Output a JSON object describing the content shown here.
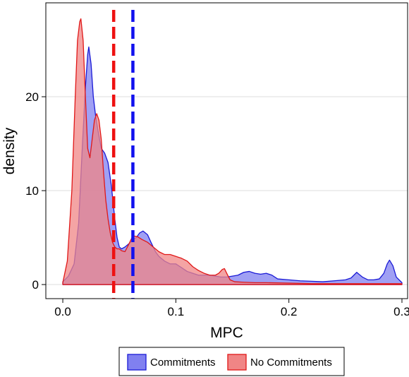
{
  "chart_data": {
    "type": "area",
    "xlabel": "MPC",
    "ylabel": "density",
    "xlim": [
      -0.015,
      0.305
    ],
    "ylim": [
      -1.5,
      30
    ],
    "xticks": [
      {
        "value": 0,
        "label": "0.0"
      },
      {
        "value": 0.1,
        "label": "0.1"
      },
      {
        "value": 0.2,
        "label": "0.2"
      },
      {
        "value": 0.3,
        "label": "0.3"
      }
    ],
    "yticks": [
      {
        "value": 0,
        "label": "0"
      },
      {
        "value": 10,
        "label": "10"
      },
      {
        "value": 20,
        "label": "20"
      }
    ],
    "grid": "horizontal",
    "legend_position": "bottom",
    "series": [
      {
        "name": "Commitments",
        "fill": "#8080f0",
        "stroke": "#1a1ad6",
        "x": [
          0.0,
          0.005,
          0.01,
          0.014,
          0.017,
          0.02,
          0.022,
          0.023,
          0.025,
          0.027,
          0.029,
          0.031,
          0.034,
          0.037,
          0.04,
          0.043,
          0.046,
          0.048,
          0.05,
          0.052,
          0.055,
          0.058,
          0.06,
          0.062,
          0.065,
          0.068,
          0.071,
          0.075,
          0.078,
          0.082,
          0.085,
          0.09,
          0.095,
          0.1,
          0.105,
          0.11,
          0.115,
          0.12,
          0.125,
          0.13,
          0.135,
          0.14,
          0.145,
          0.15,
          0.155,
          0.16,
          0.165,
          0.17,
          0.175,
          0.18,
          0.185,
          0.19,
          0.2,
          0.21,
          0.22,
          0.23,
          0.24,
          0.25,
          0.255,
          0.26,
          0.265,
          0.27,
          0.275,
          0.28,
          0.284,
          0.287,
          0.289,
          0.292,
          0.295,
          0.3
        ],
        "y": [
          0.3,
          0.9,
          2.2,
          6.5,
          14.0,
          21.0,
          24.5,
          25.3,
          23.5,
          20.0,
          18.0,
          16.5,
          14.5,
          14.0,
          13.0,
          10.5,
          7.0,
          5.0,
          4.0,
          3.8,
          4.0,
          4.3,
          4.5,
          4.8,
          5.0,
          5.5,
          5.7,
          5.3,
          4.5,
          3.5,
          3.0,
          2.5,
          2.2,
          2.2,
          1.8,
          1.4,
          1.2,
          1.0,
          1.0,
          1.0,
          0.9,
          0.8,
          0.8,
          0.9,
          1.0,
          1.3,
          1.4,
          1.2,
          1.1,
          1.2,
          1.0,
          0.6,
          0.5,
          0.4,
          0.35,
          0.3,
          0.4,
          0.5,
          0.7,
          1.3,
          0.8,
          0.5,
          0.5,
          0.6,
          1.2,
          2.2,
          2.6,
          2.0,
          0.8,
          0.2
        ]
      },
      {
        "name": "No Commitments",
        "fill": "#f08585",
        "stroke": "#e01818",
        "x": [
          0.0,
          0.004,
          0.008,
          0.011,
          0.013,
          0.015,
          0.016,
          0.018,
          0.02,
          0.022,
          0.024,
          0.026,
          0.028,
          0.03,
          0.032,
          0.034,
          0.036,
          0.038,
          0.04,
          0.042,
          0.044,
          0.046,
          0.048,
          0.05,
          0.052,
          0.055,
          0.058,
          0.062,
          0.066,
          0.07,
          0.075,
          0.08,
          0.085,
          0.09,
          0.095,
          0.1,
          0.105,
          0.11,
          0.115,
          0.12,
          0.125,
          0.13,
          0.135,
          0.138,
          0.141,
          0.143,
          0.145,
          0.148,
          0.152,
          0.16,
          0.17,
          0.18,
          0.2,
          0.22,
          0.25,
          0.28,
          0.3
        ],
        "y": [
          0.2,
          2.5,
          10.0,
          20.0,
          26.0,
          28.0,
          28.3,
          26.0,
          20.0,
          14.5,
          13.5,
          15.5,
          17.5,
          18.2,
          17.5,
          15.5,
          12.0,
          9.0,
          7.0,
          5.5,
          4.5,
          4.0,
          3.8,
          3.8,
          3.6,
          3.5,
          4.2,
          5.2,
          5.1,
          4.8,
          4.5,
          4.0,
          3.5,
          3.2,
          3.2,
          3.0,
          2.8,
          2.5,
          1.9,
          1.5,
          1.2,
          1.0,
          1.0,
          1.2,
          1.6,
          1.7,
          1.2,
          0.5,
          0.3,
          0.25,
          0.2,
          0.2,
          0.15,
          0.1,
          0.1,
          0.1,
          0.1
        ]
      }
    ],
    "reference_lines": [
      {
        "x": 0.045,
        "color": "#ee1111"
      },
      {
        "x": 0.062,
        "color": "#1111ee"
      }
    ]
  },
  "colors": {
    "grid": "#dcdcdc",
    "axis": "#000000"
  }
}
